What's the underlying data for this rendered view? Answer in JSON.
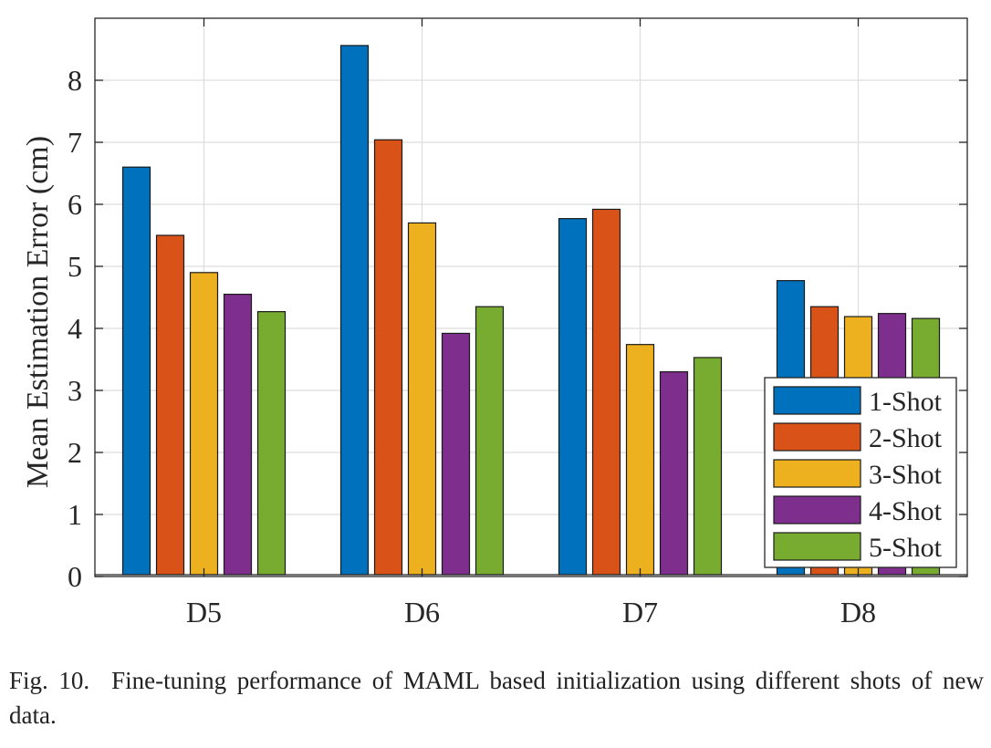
{
  "chart_data": {
    "type": "bar",
    "categories": [
      "D5",
      "D6",
      "D7",
      "D8"
    ],
    "series": [
      {
        "name": "1-Shot",
        "color": "#0072BD",
        "values": [
          6.6,
          8.56,
          5.77,
          4.77
        ]
      },
      {
        "name": "2-Shot",
        "color": "#D95319",
        "values": [
          5.5,
          7.04,
          5.92,
          4.35
        ]
      },
      {
        "name": "3-Shot",
        "color": "#EDB120",
        "values": [
          4.9,
          5.7,
          3.74,
          4.19
        ]
      },
      {
        "name": "4-Shot",
        "color": "#7E2F8E",
        "values": [
          4.55,
          3.92,
          3.3,
          4.24
        ]
      },
      {
        "name": "5-Shot",
        "color": "#77AC30",
        "values": [
          4.27,
          4.35,
          3.53,
          4.16
        ]
      }
    ],
    "xlabel": "",
    "ylabel": "Mean Estimation Error (cm)",
    "ylim": [
      0,
      9
    ],
    "yticks": [
      0,
      1,
      2,
      3,
      4,
      5,
      6,
      7,
      8
    ],
    "grid": true,
    "legend_position": "bottom-right"
  },
  "caption": {
    "label": "Fig. 10.",
    "text": "Fine-tuning performance of MAML based initialization using different shots of new data."
  }
}
